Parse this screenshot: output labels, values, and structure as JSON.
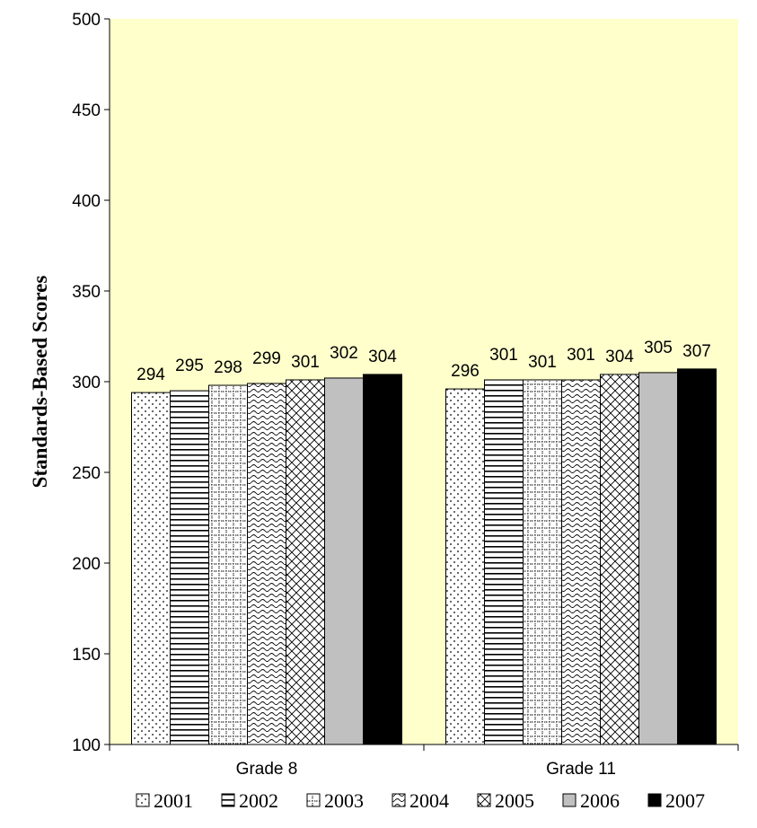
{
  "chart_data": {
    "type": "bar",
    "title": "",
    "xlabel": "",
    "ylabel": "Standards-Based Scores",
    "ylim": [
      100,
      500
    ],
    "yticks": [
      100,
      150,
      200,
      250,
      300,
      350,
      400,
      450,
      500
    ],
    "categories": [
      "Grade 8",
      "Grade 11"
    ],
    "series": [
      {
        "name": "2001",
        "values": [
          294,
          296
        ],
        "pattern": "dots"
      },
      {
        "name": "2002",
        "values": [
          295,
          301
        ],
        "pattern": "horizontal-lines"
      },
      {
        "name": "2003",
        "values": [
          298,
          301
        ],
        "pattern": "grid"
      },
      {
        "name": "2004",
        "values": [
          299,
          301
        ],
        "pattern": "wave"
      },
      {
        "name": "2005",
        "values": [
          301,
          304
        ],
        "pattern": "crosshatch"
      },
      {
        "name": "2006",
        "values": [
          302,
          305
        ],
        "pattern": "solid-gray"
      },
      {
        "name": "2007",
        "values": [
          304,
          307
        ],
        "pattern": "solid-black"
      }
    ],
    "grid": false,
    "legend": "bottom",
    "colors": {
      "plot_background": "#FFFFCC",
      "gray_fill": "#C0C0C0",
      "black_fill": "#000000"
    }
  }
}
